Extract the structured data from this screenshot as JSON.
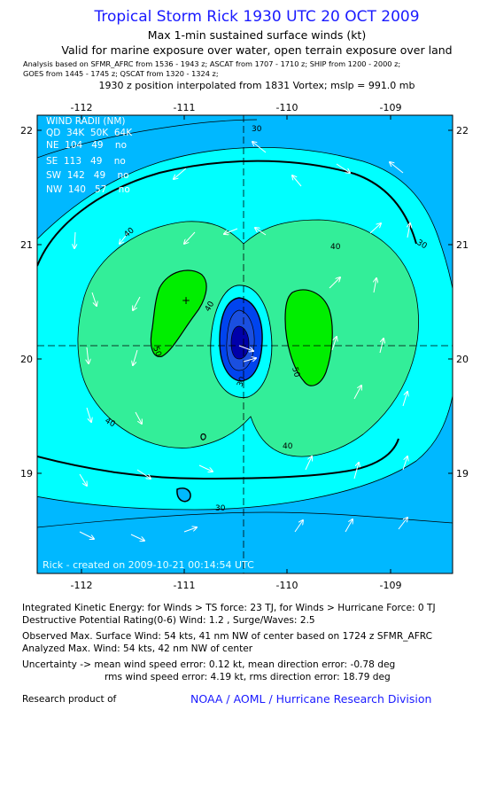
{
  "header": {
    "title": "Tropical Storm Rick 1930 UTC 20 OCT 2009",
    "subtitle": "Max 1-min sustained surface winds (kt)",
    "valid": "Valid for marine exposure over water, open terrain exposure over land",
    "analysis_line1": "Analysis based on  SFMR_AFRC from 1536 - 1943 z;  ASCAT from 1707 - 1710 z;  SHIP from 1200 - 2000 z;",
    "analysis_line2": "GOES from 1445 - 1745 z;  QSCAT from 1320 - 1324 z;",
    "position": "1930 z position interpolated from 1831 Vortex; mslp = 991.0 mb"
  },
  "map": {
    "top_ticks": [
      "-112",
      "-111",
      "-110",
      "-109"
    ],
    "bottom_ticks": [
      "-112",
      "-111",
      "-110",
      "-109"
    ],
    "left_ticks": [
      "22",
      "21",
      "20",
      "19"
    ],
    "right_ticks": [
      "22",
      "21",
      "20",
      "19"
    ],
    "contour_labels": [
      "30",
      "30",
      "30",
      "40",
      "40",
      "40",
      "40",
      "40",
      "30",
      "50",
      "50"
    ],
    "wind_radii": {
      "title": "WIND RADII (NM)",
      "header": "QD  34K  50K  64K",
      "rows": [
        "NE  104   49    no",
        "SE  113   49    no",
        "SW  142   49    no",
        "NW  140   57    no"
      ]
    },
    "credit": "Rick  - created on  2009-10-21  00:14:54 UTC",
    "colors": {
      "level_below_30": "#00b8ff",
      "level_30_40": "#00ffff",
      "level_40_50": "#33ee99",
      "level_50_plus": "#00ee00",
      "center_core": "#0044ee",
      "center_deep": "#0000aa"
    }
  },
  "footer": {
    "ike": "Integrated Kinetic Energy:  for Winds > TS force: 23 TJ,  for Winds > Hurricane Force: 0 TJ",
    "dpr": "Destructive Potential Rating(0-6)   Wind: 1.2 , Surge/Waves: 2.5",
    "observed": "Observed Max. Surface Wind: 54 kts, 41 nm NW of center based on 1724 z SFMR_AFRC",
    "analyzed": "Analyzed Max. Wind: 54 kts, 42 nm NW of center",
    "uncert1": "Uncertainty -> mean wind speed error: 0.12 kt,   mean direction error:  -0.78 deg",
    "uncert2": "rms wind speed error: 4.19 kt,   rms direction error: 18.79 deg",
    "research": "Research product of",
    "noaa": "NOAA / AOML / Hurricane Research Division"
  }
}
